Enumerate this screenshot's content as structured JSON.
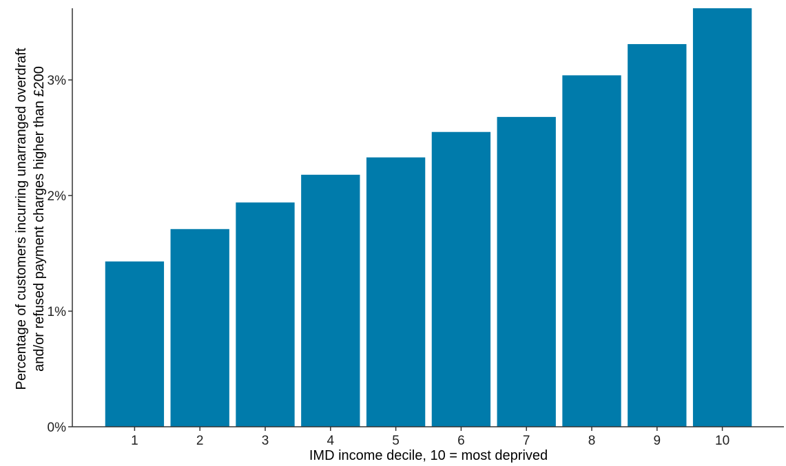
{
  "chart_data": {
    "type": "bar",
    "categories": [
      "1",
      "2",
      "3",
      "4",
      "5",
      "6",
      "7",
      "8",
      "9",
      "10"
    ],
    "values": [
      1.43,
      1.71,
      1.94,
      2.18,
      2.33,
      2.55,
      2.68,
      3.04,
      3.31,
      3.62
    ],
    "xlabel": "IMD income decile, 10 = most deprived",
    "ylabel_line1": "Percentage of customers incurring unarranged overdraft",
    "ylabel_line2": "and/or refused payment charges higher than £200",
    "ylim": [
      0,
      3.62
    ],
    "yticks": [
      0,
      1,
      2,
      3
    ],
    "ytick_labels": [
      "0%",
      "1%",
      "2%",
      "3%"
    ],
    "bar_color": "#007bab",
    "grid": false,
    "legend": "none"
  }
}
